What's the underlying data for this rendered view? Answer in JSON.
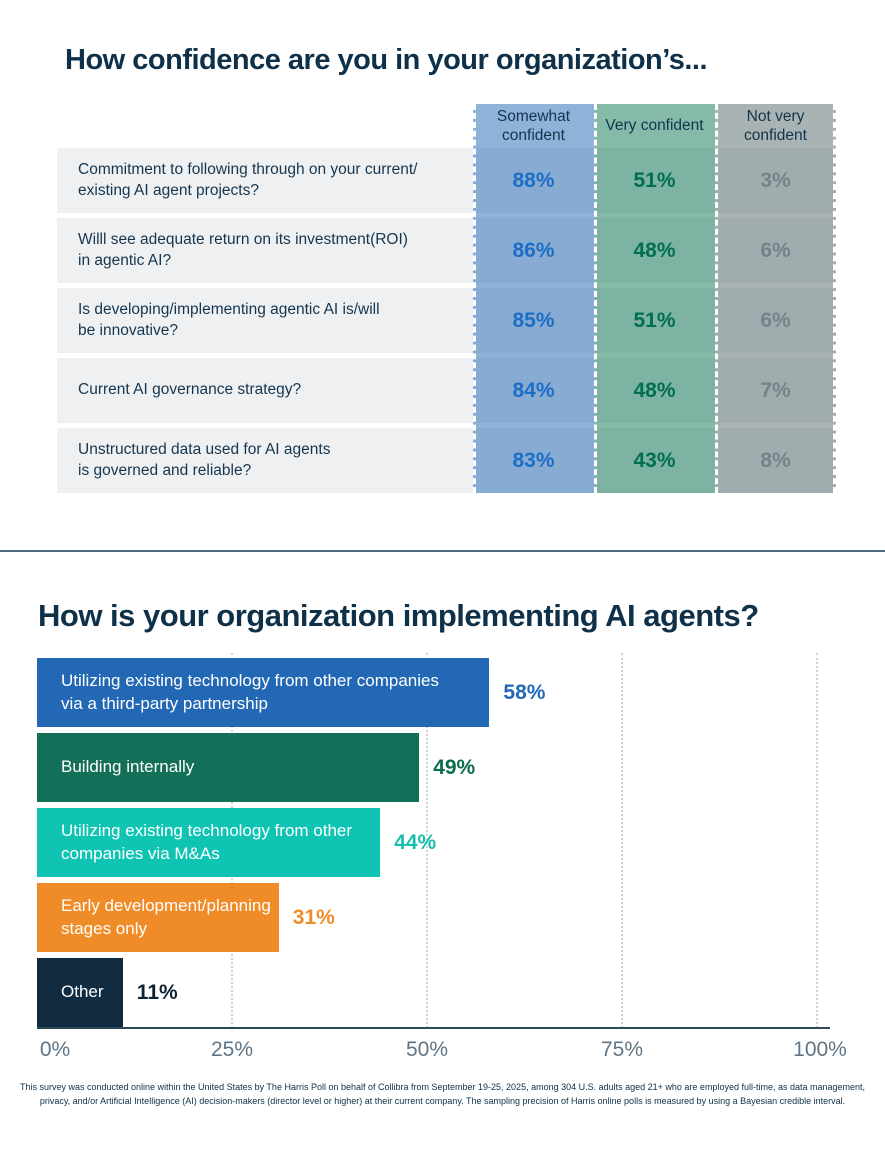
{
  "chart_data": [
    {
      "type": "table",
      "title": "How confidence are you in your organization’s...",
      "columns": [
        {
          "label": "Somewhat confident",
          "overlay_color": "rgba(31,101,177,0.5)",
          "value_color": "#1d6ec5"
        },
        {
          "label": "Very confident",
          "overlay_color": "rgba(11,117,81,0.5)",
          "value_color": "#006e52"
        },
        {
          "label": "Not very confident",
          "overlay_color": "rgba(83,103,105,0.5)",
          "value_color": "#76838a"
        }
      ],
      "rows": [
        {
          "label": "Commitment to following through on your current/\nexisting AI agent projects?",
          "values": [
            "88%",
            "51%",
            "3%"
          ],
          "numeric": [
            88,
            51,
            3
          ]
        },
        {
          "label": "Willl see adequate return on its investment(ROI)\nin agentic AI?",
          "values": [
            "86%",
            "48%",
            "6%"
          ],
          "numeric": [
            86,
            48,
            6
          ]
        },
        {
          "label": "Is developing/implementing agentic AI is/will\nbe innovative?",
          "values": [
            "85%",
            "51%",
            "6%"
          ],
          "numeric": [
            85,
            51,
            6
          ]
        },
        {
          "label": "Current AI governance strategy?",
          "values": [
            "84%",
            "48%",
            "7%"
          ],
          "numeric": [
            84,
            48,
            7
          ]
        },
        {
          "label": "Unstructured data used for AI agents\nis governed and reliable?",
          "values": [
            "83%",
            "43%",
            "8%"
          ],
          "numeric": [
            83,
            43,
            8
          ]
        }
      ]
    },
    {
      "type": "bar",
      "orientation": "horizontal",
      "title": "How is your organization implementing AI agents?",
      "xlim": [
        0,
        100
      ],
      "x_ticks": [
        "0%",
        "25%",
        "50%",
        "75%",
        "100%"
      ],
      "grid": "dotted-vertical",
      "bars": [
        {
          "label": "Utilizing existing technology from other companies\nvia a third-party partnership",
          "value": 58,
          "pct": "58%",
          "color": "#2268b4",
          "value_color": "#2268b4"
        },
        {
          "label": "Building internally",
          "value": 49,
          "pct": "49%",
          "color": "#146f58",
          "value_color": "#0b6b4e"
        },
        {
          "label": "Utilizing existing technology from other\ncompanies via M&As",
          "value": 44,
          "pct": "44%",
          "color": "#10c4b3",
          "value_color": "#17bfae"
        },
        {
          "label": "Early development/planning\nstages only",
          "value": 31,
          "pct": "31%",
          "color": "#f08c27",
          "value_color": "#f08c27"
        },
        {
          "label": "Other",
          "value": 11,
          "pct": "11%",
          "color": "#112c40",
          "value_color": "#0f2233"
        }
      ]
    }
  ],
  "footer": {
    "text": "This survey was conducted online within the United States by The Harris Poll on behalf of Collibra from September 19-25, 2025, among 304 U.S. adults aged 21+ who are employed full-time, as data management,\nprivacy, and/or Artificial Intelligence (AI) decision-makers (director level or higher) at their current company. The sampling precision of Harris online polls is measured by using a Bayesian credible interval."
  }
}
